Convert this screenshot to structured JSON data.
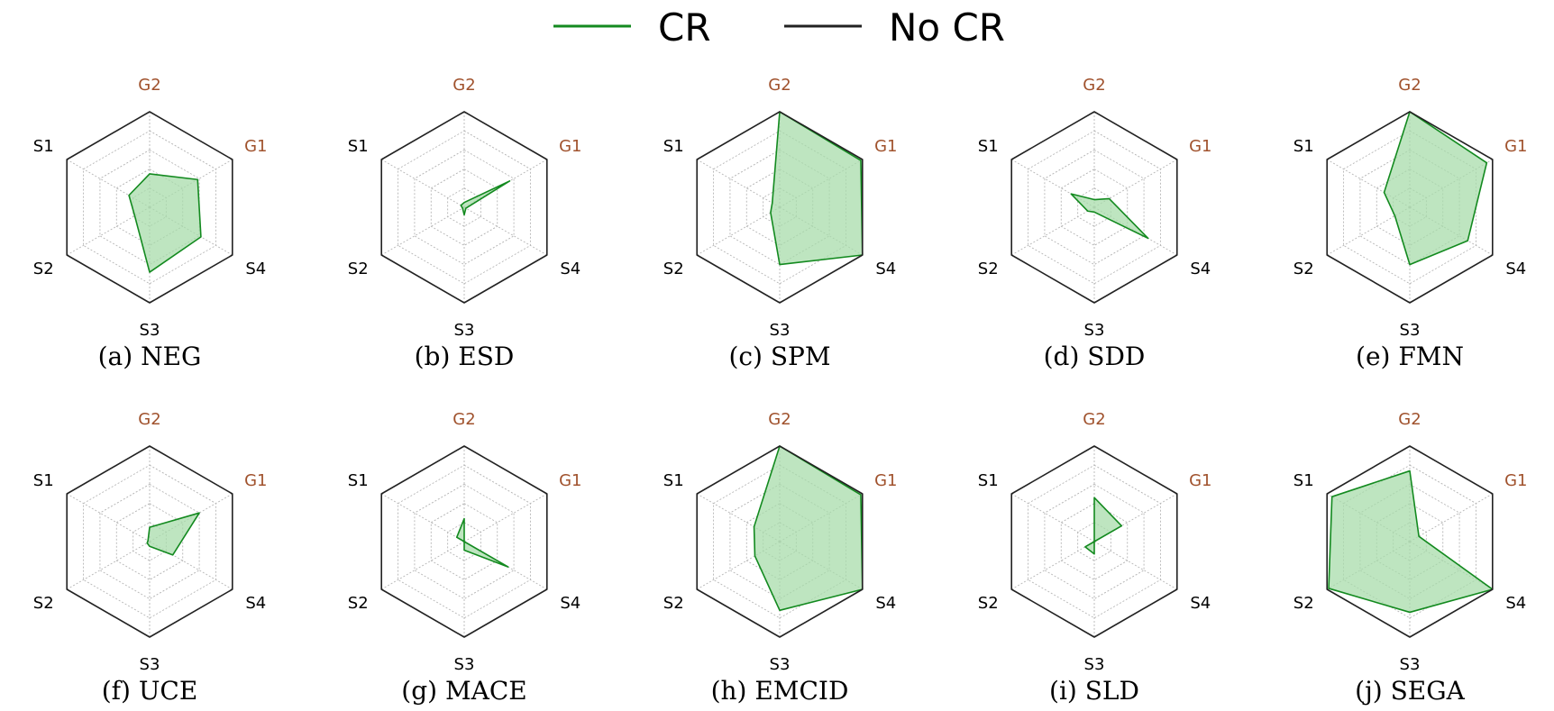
{
  "colors": {
    "cr_stroke": "#138a1f",
    "cr_fill": "#a8dcab",
    "no_cr_stroke": "#222222",
    "grid": "#b5b5b5",
    "goal_label": "#a0522d",
    "style_label": "#000000"
  },
  "legend": {
    "items": [
      {
        "label": "CR",
        "color": "#138a1f"
      },
      {
        "label": "No CR",
        "color": "#222222"
      }
    ]
  },
  "chart_data": [
    {
      "type": "radar",
      "caption": "(a) NEG",
      "axes": [
        "G2",
        "G1",
        "S4",
        "S3",
        "S2",
        "S1"
      ],
      "grid_levels": 5,
      "rmax": 1.0,
      "series": [
        {
          "name": "CR",
          "values": [
            0.35,
            0.58,
            0.62,
            0.68,
            0.18,
            0.25
          ]
        },
        {
          "name": "No CR",
          "values": [
            1.0,
            1.0,
            1.0,
            1.0,
            1.0,
            1.0
          ]
        }
      ]
    },
    {
      "type": "radar",
      "caption": "(b) ESD",
      "axes": [
        "G2",
        "G1",
        "S4",
        "S3",
        "S2",
        "S1"
      ],
      "grid_levels": 5,
      "rmax": 1.0,
      "series": [
        {
          "name": "CR",
          "values": [
            0.05,
            0.55,
            0.02,
            0.08,
            0.02,
            0.04
          ]
        },
        {
          "name": "No CR",
          "values": [
            1.0,
            1.0,
            1.0,
            1.0,
            1.0,
            1.0
          ]
        }
      ]
    },
    {
      "type": "radar",
      "caption": "(c) SPM",
      "axes": [
        "G2",
        "G1",
        "S4",
        "S3",
        "S2",
        "S1"
      ],
      "grid_levels": 5,
      "rmax": 1.0,
      "series": [
        {
          "name": "CR",
          "values": [
            1.0,
            0.98,
            1.0,
            0.6,
            0.11,
            0.09
          ]
        },
        {
          "name": "No CR",
          "values": [
            1.0,
            1.0,
            1.0,
            1.0,
            1.0,
            1.0
          ]
        }
      ]
    },
    {
      "type": "radar",
      "caption": "(d) SDD",
      "axes": [
        "G2",
        "G1",
        "S4",
        "S3",
        "S2",
        "S1"
      ],
      "grid_levels": 5,
      "rmax": 1.0,
      "series": [
        {
          "name": "CR",
          "values": [
            0.08,
            0.18,
            0.65,
            0.05,
            0.08,
            0.28
          ]
        },
        {
          "name": "No CR",
          "values": [
            1.0,
            1.0,
            1.0,
            1.0,
            1.0,
            1.0
          ]
        }
      ]
    },
    {
      "type": "radar",
      "caption": "(e) FMN",
      "axes": [
        "G2",
        "G1",
        "S4",
        "S3",
        "S2",
        "S1"
      ],
      "grid_levels": 5,
      "rmax": 1.0,
      "series": [
        {
          "name": "CR",
          "values": [
            1.0,
            0.93,
            0.7,
            0.6,
            0.18,
            0.31
          ]
        },
        {
          "name": "No CR",
          "values": [
            1.0,
            1.0,
            1.0,
            1.0,
            1.0,
            1.0
          ]
        }
      ]
    },
    {
      "type": "radar",
      "caption": "(f) UCE",
      "axes": [
        "G2",
        "G1",
        "S4",
        "S3",
        "S2",
        "S1"
      ],
      "grid_levels": 5,
      "rmax": 1.0,
      "series": [
        {
          "name": "CR",
          "values": [
            0.15,
            0.6,
            0.28,
            0.05,
            0.03,
            0.02
          ]
        },
        {
          "name": "No CR",
          "values": [
            1.0,
            1.0,
            1.0,
            1.0,
            1.0,
            1.0
          ]
        }
      ]
    },
    {
      "type": "radar",
      "caption": "(g) MACE",
      "axes": [
        "G2",
        "G1",
        "S4",
        "S3",
        "S2",
        "S1"
      ],
      "grid_levels": 5,
      "rmax": 1.0,
      "series": [
        {
          "name": "CR",
          "values": [
            0.24,
            0.0,
            0.53,
            0.09,
            0.0,
            0.09
          ]
        },
        {
          "name": "No CR",
          "values": [
            1.0,
            1.0,
            1.0,
            1.0,
            1.0,
            1.0
          ]
        }
      ]
    },
    {
      "type": "radar",
      "caption": "(h) EMCID",
      "axes": [
        "G2",
        "G1",
        "S4",
        "S3",
        "S2",
        "S1"
      ],
      "grid_levels": 5,
      "rmax": 1.0,
      "series": [
        {
          "name": "CR",
          "values": [
            1.0,
            0.98,
            1.0,
            0.72,
            0.3,
            0.31
          ]
        },
        {
          "name": "No CR",
          "values": [
            1.0,
            1.0,
            1.0,
            1.0,
            1.0,
            1.0
          ]
        }
      ]
    },
    {
      "type": "radar",
      "caption": "(i) SLD",
      "axes": [
        "G2",
        "G1",
        "S4",
        "S3",
        "S2",
        "S1"
      ],
      "grid_levels": 5,
      "rmax": 1.0,
      "series": [
        {
          "name": "CR",
          "values": [
            0.46,
            0.33,
            0.0,
            0.13,
            0.11,
            0.0
          ]
        },
        {
          "name": "No CR",
          "values": [
            1.0,
            1.0,
            1.0,
            1.0,
            1.0,
            1.0
          ]
        }
      ]
    },
    {
      "type": "radar",
      "caption": "(j) SEGA",
      "axes": [
        "G2",
        "G1",
        "S4",
        "S3",
        "S2",
        "S1"
      ],
      "grid_levels": 5,
      "rmax": 1.0,
      "series": [
        {
          "name": "CR",
          "values": [
            0.74,
            0.11,
            1.0,
            0.74,
            0.98,
            0.94
          ]
        },
        {
          "name": "No CR",
          "values": [
            1.0,
            1.0,
            1.0,
            1.0,
            1.0,
            1.0
          ]
        }
      ]
    }
  ]
}
